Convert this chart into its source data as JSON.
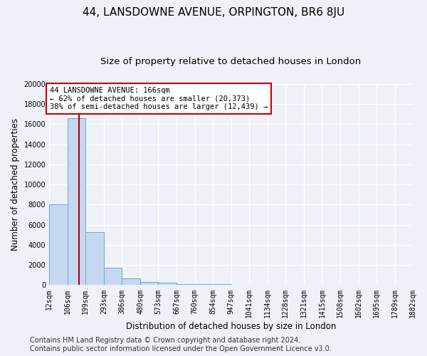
{
  "title": "44, LANSDOWNE AVENUE, ORPINGTON, BR6 8JU",
  "subtitle": "Size of property relative to detached houses in London",
  "xlabel": "Distribution of detached houses by size in London",
  "ylabel": "Number of detached properties",
  "bin_edges": [
    12,
    106,
    199,
    293,
    386,
    480,
    573,
    667,
    760,
    854,
    947,
    1041,
    1134,
    1228,
    1321,
    1415,
    1508,
    1602,
    1695,
    1789,
    1882
  ],
  "bar_heights": [
    8050,
    16600,
    5300,
    1750,
    700,
    350,
    220,
    130,
    90,
    70,
    55,
    45,
    35,
    25,
    20,
    15,
    12,
    10,
    8,
    7
  ],
  "bar_color": "#c5d8f0",
  "bar_edge_color": "#6aaad4",
  "property_size": 166,
  "vline_color": "#aa0000",
  "annotation_text": "44 LANSDOWNE AVENUE: 166sqm\n← 62% of detached houses are smaller (20,373)\n38% of semi-detached houses are larger (12,439) →",
  "annotation_box_color": "#ffffff",
  "annotation_box_edge": "#cc0000",
  "ylim": [
    0,
    20000
  ],
  "yticks": [
    0,
    2000,
    4000,
    6000,
    8000,
    10000,
    12000,
    14000,
    16000,
    18000,
    20000
  ],
  "tick_labels": [
    "12sqm",
    "106sqm",
    "199sqm",
    "293sqm",
    "386sqm",
    "480sqm",
    "573sqm",
    "667sqm",
    "760sqm",
    "854sqm",
    "947sqm",
    "1041sqm",
    "1134sqm",
    "1228sqm",
    "1321sqm",
    "1415sqm",
    "1508sqm",
    "1602sqm",
    "1695sqm",
    "1789sqm",
    "1882sqm"
  ],
  "footer_line1": "Contains HM Land Registry data © Crown copyright and database right 2024.",
  "footer_line2": "Contains public sector information licensed under the Open Government Licence v3.0.",
  "bg_color": "#eef2f8",
  "grid_color": "#ffffff",
  "title_fontsize": 11,
  "subtitle_fontsize": 9.5,
  "axis_label_fontsize": 8.5,
  "tick_fontsize": 7,
  "footer_fontsize": 7,
  "annotation_fontsize": 7.5
}
